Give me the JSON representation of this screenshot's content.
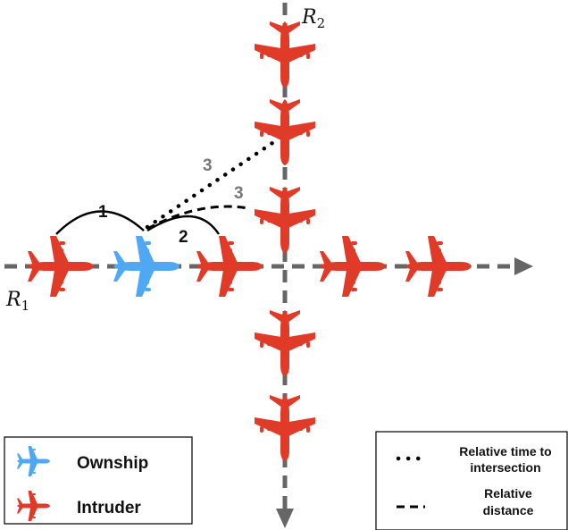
{
  "diagram": {
    "axes": {
      "r1": {
        "symbol": "R",
        "subscript": "1"
      },
      "r2": {
        "symbol": "R",
        "subscript": "2"
      }
    },
    "links": {
      "label_1": "1",
      "label_2": "2",
      "label_3_time": "3",
      "label_3_distance": "3"
    }
  },
  "legend_left": {
    "ownship": "Ownship",
    "intruder": "Intruder"
  },
  "legend_right": {
    "time_line1": "Relative time to",
    "time_line2": "intersection",
    "distance_line1": "Relative",
    "distance_line2": "distance"
  },
  "colors": {
    "ownship": "#4ea8f4",
    "intruder": "#e03a28",
    "road": "#666666",
    "label_gray": "#777777"
  }
}
